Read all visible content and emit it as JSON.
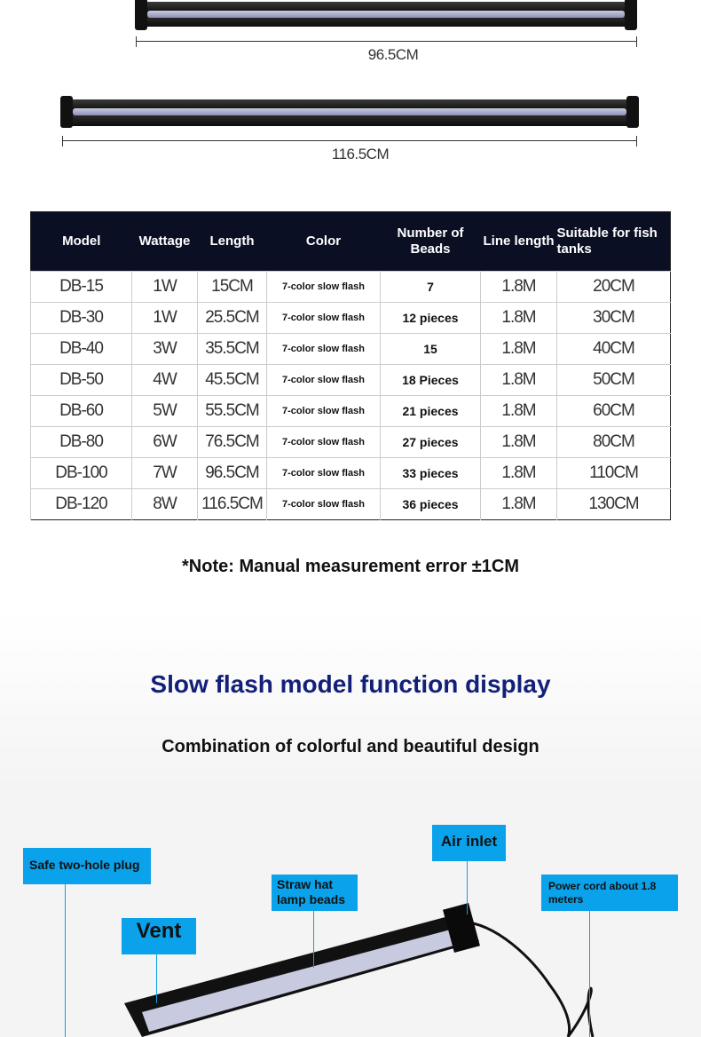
{
  "dimensions": [
    "96.5CM",
    "116.5CM"
  ],
  "table": {
    "headers": [
      "Model",
      "Wattage",
      "Length",
      "Color",
      "Number of Beads",
      "Line length",
      "Suitable for fish tanks"
    ],
    "rows": [
      [
        "DB-15",
        "1W",
        "15CM",
        "7-color slow flash",
        "7",
        "1.8M",
        "20CM"
      ],
      [
        "DB-30",
        "1W",
        "25.5CM",
        "7-color slow flash",
        "12 pieces",
        "1.8M",
        "30CM"
      ],
      [
        "DB-40",
        "3W",
        "35.5CM",
        "7-color slow flash",
        "15",
        "1.8M",
        "40CM"
      ],
      [
        "DB-50",
        "4W",
        "45.5CM",
        "7-color slow flash",
        "18 Pieces",
        "1.8M",
        "50CM"
      ],
      [
        "DB-60",
        "5W",
        "55.5CM",
        "7-color slow flash",
        "21 pieces",
        "1.8M",
        "60CM"
      ],
      [
        "DB-80",
        "6W",
        "76.5CM",
        "7-color slow flash",
        "27 pieces",
        "1.8M",
        "80CM"
      ],
      [
        "DB-100",
        "7W",
        "96.5CM",
        "7-color slow flash",
        "33 pieces",
        "1.8M",
        "110CM"
      ],
      [
        "DB-120",
        "8W",
        "116.5CM",
        "7-color slow flash",
        "36 pieces",
        "1.8M",
        "130CM"
      ]
    ]
  },
  "note": "*Note: Manual measurement error ±1CM",
  "section": {
    "title": "Slow flash model function display",
    "subtitle": "Combination of colorful and beautiful design"
  },
  "callouts": {
    "plug": "Safe two-hole plug",
    "air": "Air inlet",
    "beads": "Straw hat lamp beads",
    "power": "Power cord about 1.8 meters",
    "vent": "Vent"
  },
  "colors": {
    "header_bg": "#0b0f24",
    "title": "#13207a",
    "callout": "#0aa2ea"
  }
}
